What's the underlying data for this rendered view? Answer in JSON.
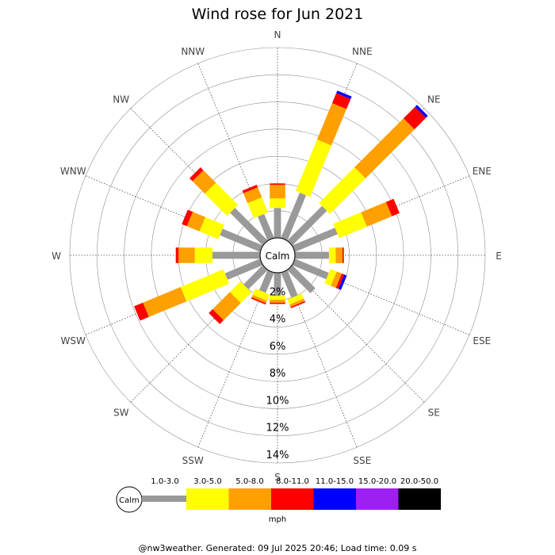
{
  "chart_data": {
    "type": "wind-rose",
    "title": "Wind rose for Jun 2021",
    "center_label": "Calm",
    "directions": [
      "N",
      "NNE",
      "NE",
      "ENE",
      "E",
      "ESE",
      "SE",
      "SSE",
      "S",
      "SSW",
      "SW",
      "WSW",
      "W",
      "WNW",
      "NW",
      "NNW"
    ],
    "radial_ticks": [
      "2%",
      "4%",
      "6%",
      "8%",
      "10%",
      "12%",
      "14%"
    ],
    "radial_max": 14,
    "units_label": "mph",
    "speed_bins": [
      {
        "label": "1.0-3.0",
        "color": "#999999"
      },
      {
        "label": "3.0-5.0",
        "color": "#ffff00"
      },
      {
        "label": "5.0-8.0",
        "color": "#ff9f00"
      },
      {
        "label": "8.0-11.0",
        "color": "#ff0000"
      },
      {
        "label": "11.0-15.0",
        "color": "#0000ff"
      },
      {
        "label": "15.0-20.0",
        "color": "#9e20f0"
      },
      {
        "label": "20.0-50.0",
        "color": "#000000"
      }
    ],
    "series": [
      {
        "direction": "N",
        "cumulative": [
          2.2,
          2.9,
          3.9,
          4.0,
          4.0,
          4.0,
          4.0
        ]
      },
      {
        "direction": "NNE",
        "cumulative": [
          3.6,
          7.7,
          10.6,
          11.4,
          11.6,
          11.6,
          11.6
        ]
      },
      {
        "direction": "NE",
        "cumulative": [
          3.6,
          7.3,
          12.4,
          13.6,
          13.8,
          13.8,
          13.8
        ]
      },
      {
        "direction": "ENE",
        "cumulative": [
          3.4,
          5.6,
          7.6,
          8.2,
          8.2,
          8.2,
          8.2
        ]
      },
      {
        "direction": "E",
        "cumulative": [
          2.5,
          3.0,
          3.5,
          3.6,
          3.6,
          3.6,
          3.6
        ]
      },
      {
        "direction": "ESE",
        "cumulative": [
          2.7,
          3.2,
          3.6,
          3.8,
          4.0,
          4.0,
          4.0
        ]
      },
      {
        "direction": "SE",
        "cumulative": [
          2.4,
          2.4,
          2.4,
          2.4,
          2.4,
          2.4,
          2.4
        ]
      },
      {
        "direction": "SSE",
        "cumulative": [
          2.0,
          2.4,
          2.6,
          2.7,
          2.7,
          2.7,
          2.7
        ]
      },
      {
        "direction": "S",
        "cumulative": [
          1.7,
          2.0,
          2.2,
          2.3,
          2.3,
          2.3,
          2.3
        ]
      },
      {
        "direction": "SSW",
        "cumulative": [
          1.6,
          2.1,
          2.3,
          2.4,
          2.4,
          2.4,
          2.4
        ]
      },
      {
        "direction": "SW",
        "cumulative": [
          2.0,
          3.1,
          4.9,
          5.3,
          5.3,
          5.3,
          5.3
        ]
      },
      {
        "direction": "WSW",
        "cumulative": [
          2.8,
          6.2,
          9.2,
          9.9,
          9.9,
          9.9,
          9.9
        ]
      },
      {
        "direction": "W",
        "cumulative": [
          3.5,
          4.8,
          6.0,
          6.2,
          6.2,
          6.2,
          6.2
        ]
      },
      {
        "direction": "WNW",
        "cumulative": [
          3.2,
          4.7,
          5.7,
          6.1,
          6.1,
          6.1,
          6.1
        ]
      },
      {
        "direction": "NW",
        "cumulative": [
          3.4,
          5.7,
          7.0,
          7.3,
          7.3,
          7.3,
          7.3
        ]
      },
      {
        "direction": "NNW",
        "cumulative": [
          1.9,
          3.1,
          3.9,
          4.1,
          4.1,
          4.1,
          4.1
        ]
      }
    ]
  },
  "footer": "@nw3weather. Generated: 09 Jul 2025 20:46; Load time: 0.09 s"
}
